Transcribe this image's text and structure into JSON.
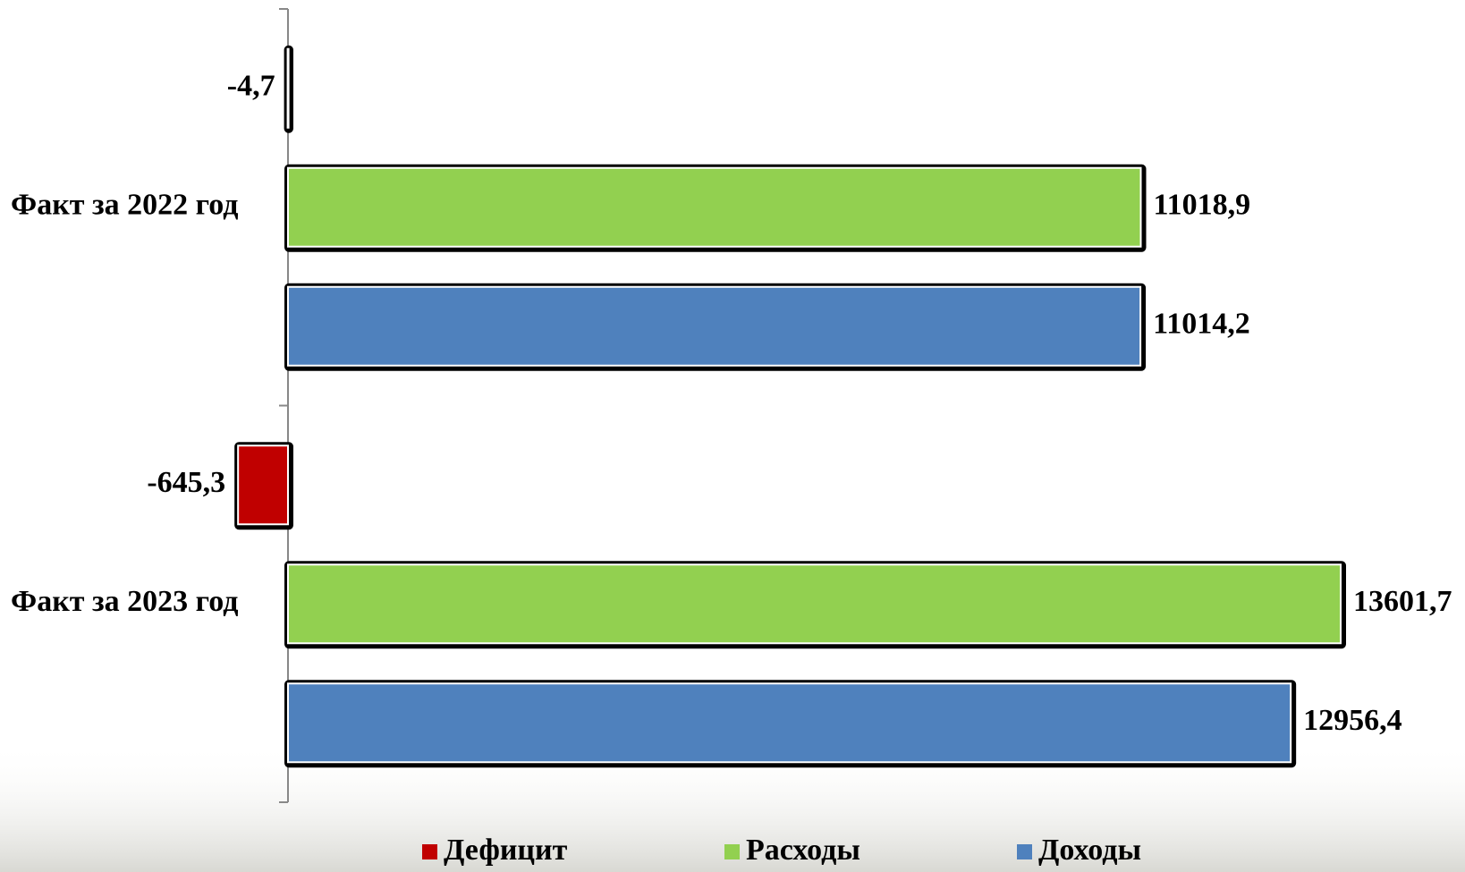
{
  "chart_data": {
    "type": "hbar",
    "categories": [
      "Факт за 2022 год",
      "Факт за 2023 год"
    ],
    "series": [
      {
        "name": "Дефицит",
        "color": "#c00000",
        "values": [
          -4.7,
          -645.3
        ],
        "value_labels": [
          "-4,7",
          "-645,3"
        ]
      },
      {
        "name": "Расходы",
        "color": "#92d050",
        "values": [
          11018.9,
          13601.7
        ],
        "value_labels": [
          "11018,9",
          "13601,7"
        ]
      },
      {
        "name": "Доходы",
        "color": "#4f81bd",
        "values": [
          11014.2,
          12956.4
        ],
        "value_labels": [
          "11014,2",
          "12956,4"
        ]
      }
    ],
    "legend": "bottom"
  }
}
